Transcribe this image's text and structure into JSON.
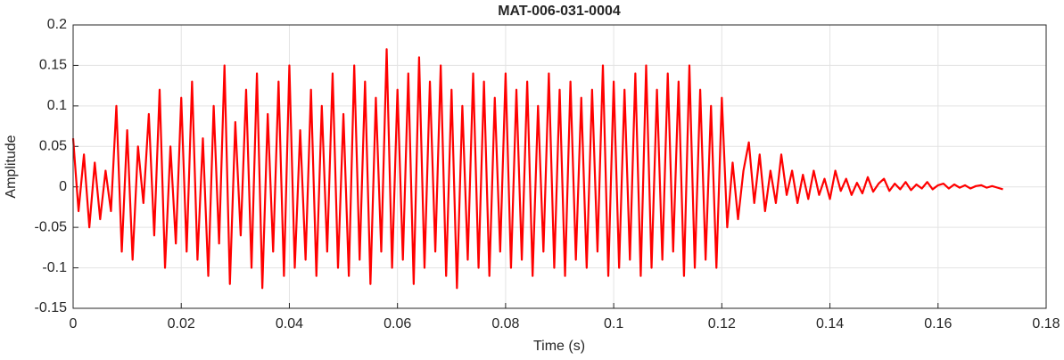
{
  "chart_data": {
    "type": "line",
    "title": "MAT-006-031-0004",
    "x_label": "Time (s)",
    "y_label": "Amplitude",
    "x": [
      0,
      0.001,
      0.002,
      0.003,
      0.004,
      0.005,
      0.006,
      0.007,
      0.008,
      0.009,
      0.01,
      0.011,
      0.012,
      0.013,
      0.014,
      0.015,
      0.016,
      0.017,
      0.018,
      0.019,
      0.02,
      0.021,
      0.022,
      0.023,
      0.024,
      0.025,
      0.026,
      0.027,
      0.028,
      0.029,
      0.03,
      0.031,
      0.032,
      0.033,
      0.034,
      0.035,
      0.036,
      0.037,
      0.038,
      0.039,
      0.04,
      0.041,
      0.042,
      0.043,
      0.044,
      0.045,
      0.046,
      0.047,
      0.048,
      0.049,
      0.05,
      0.051,
      0.052,
      0.053,
      0.054,
      0.055,
      0.056,
      0.057,
      0.058,
      0.059,
      0.06,
      0.061,
      0.062,
      0.063,
      0.064,
      0.065,
      0.066,
      0.067,
      0.068,
      0.069,
      0.07,
      0.071,
      0.072,
      0.073,
      0.074,
      0.075,
      0.076,
      0.077,
      0.078,
      0.079,
      0.08,
      0.081,
      0.082,
      0.083,
      0.084,
      0.085,
      0.086,
      0.087,
      0.088,
      0.089,
      0.09,
      0.091,
      0.092,
      0.093,
      0.094,
      0.095,
      0.096,
      0.097,
      0.098,
      0.099,
      0.1,
      0.101,
      0.102,
      0.103,
      0.104,
      0.105,
      0.106,
      0.107,
      0.108,
      0.109,
      0.11,
      0.111,
      0.112,
      0.113,
      0.114,
      0.115,
      0.116,
      0.117,
      0.118,
      0.119,
      0.12,
      0.121,
      0.122,
      0.123,
      0.124,
      0.125,
      0.126,
      0.127,
      0.128,
      0.129,
      0.13,
      0.131,
      0.132,
      0.133,
      0.134,
      0.135,
      0.136,
      0.137,
      0.138,
      0.139,
      0.14,
      0.141,
      0.142,
      0.143,
      0.144,
      0.145,
      0.146,
      0.147,
      0.148,
      0.149,
      0.15,
      0.151,
      0.152,
      0.153,
      0.154,
      0.155,
      0.156,
      0.157,
      0.158,
      0.159,
      0.16,
      0.161,
      0.162,
      0.163,
      0.164,
      0.165,
      0.166,
      0.167,
      0.168,
      0.169,
      0.17,
      0.171,
      0.172
    ],
    "values": [
      0.06,
      -0.03,
      0.04,
      -0.05,
      0.03,
      -0.04,
      0.02,
      -0.03,
      0.1,
      -0.08,
      0.07,
      -0.09,
      0.05,
      -0.02,
      0.09,
      -0.06,
      0.12,
      -0.1,
      0.05,
      -0.07,
      0.11,
      -0.08,
      0.13,
      -0.09,
      0.06,
      -0.11,
      0.1,
      -0.07,
      0.15,
      -0.12,
      0.08,
      -0.06,
      0.12,
      -0.1,
      0.14,
      -0.125,
      0.09,
      -0.08,
      0.13,
      -0.11,
      0.15,
      -0.1,
      0.07,
      -0.09,
      0.12,
      -0.11,
      0.1,
      -0.08,
      0.14,
      -0.1,
      0.09,
      -0.11,
      0.15,
      -0.09,
      0.13,
      -0.12,
      0.11,
      -0.08,
      0.17,
      -0.1,
      0.12,
      -0.09,
      0.14,
      -0.12,
      0.16,
      -0.1,
      0.13,
      -0.08,
      0.15,
      -0.11,
      0.12,
      -0.125,
      0.1,
      -0.09,
      0.14,
      -0.1,
      0.13,
      -0.11,
      0.11,
      -0.08,
      0.14,
      -0.1,
      0.12,
      -0.09,
      0.13,
      -0.11,
      0.1,
      -0.08,
      0.14,
      -0.1,
      0.12,
      -0.11,
      0.13,
      -0.09,
      0.11,
      -0.1,
      0.12,
      -0.08,
      0.15,
      -0.11,
      0.13,
      -0.1,
      0.12,
      -0.09,
      0.14,
      -0.11,
      0.15,
      -0.1,
      0.12,
      -0.09,
      0.14,
      -0.08,
      0.13,
      -0.11,
      0.15,
      -0.1,
      0.12,
      -0.09,
      0.1,
      -0.1,
      0.11,
      -0.05,
      0.03,
      -0.04,
      0.02,
      0.055,
      -0.02,
      0.04,
      -0.03,
      0.02,
      -0.02,
      0.04,
      -0.01,
      0.02,
      -0.02,
      0.015,
      -0.015,
      0.02,
      -0.01,
      0.01,
      -0.015,
      0.02,
      -0.005,
      0.01,
      -0.01,
      0.005,
      -0.008,
      0.012,
      -0.006,
      0.004,
      0.01,
      -0.005,
      0.004,
      -0.003,
      0.006,
      -0.004,
      0.003,
      -0.002,
      0.006,
      -0.003,
      0.002,
      0.004,
      -0.002,
      0.003,
      -0.001,
      0.002,
      -0.002,
      0.001,
      0.002,
      -0.001,
      0.001,
      -0.001,
      -0.003
    ],
    "color": "#ff0000",
    "xlim": [
      0,
      0.18
    ],
    "xticks": [
      0,
      0.02,
      0.04,
      0.06,
      0.08,
      0.1,
      0.12,
      0.14,
      0.16,
      0.18
    ],
    "ylim": [
      -0.15,
      0.2
    ],
    "yticks": [
      -0.15,
      -0.1,
      -0.05,
      0,
      0.05,
      0.1,
      0.15,
      0.2
    ],
    "grid": true
  }
}
